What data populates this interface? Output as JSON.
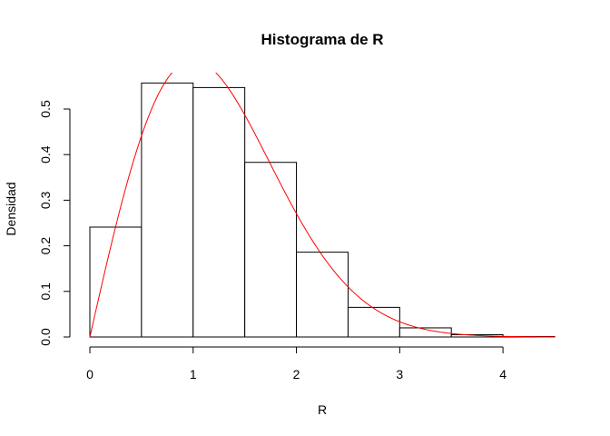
{
  "chart_data": {
    "type": "histogram",
    "title": "Histograma de R",
    "xlabel": "R",
    "ylabel": "Densidad",
    "xlim": [
      0,
      4.5
    ],
    "ylim": [
      0,
      0.58
    ],
    "xticks": [
      0,
      1,
      2,
      3,
      4
    ],
    "yticks": [
      0.0,
      0.1,
      0.2,
      0.3,
      0.4,
      0.5
    ],
    "ytick_labels": [
      "0.0",
      "0.1",
      "0.2",
      "0.3",
      "0.4",
      "0.5"
    ],
    "bins": [
      {
        "from": 0.0,
        "to": 0.5,
        "density": 0.241
      },
      {
        "from": 0.5,
        "to": 1.0,
        "density": 0.557
      },
      {
        "from": 1.0,
        "to": 1.5,
        "density": 0.547
      },
      {
        "from": 1.5,
        "to": 2.0,
        "density": 0.383
      },
      {
        "from": 2.0,
        "to": 2.5,
        "density": 0.186
      },
      {
        "from": 2.5,
        "to": 3.0,
        "density": 0.065
      },
      {
        "from": 3.0,
        "to": 3.5,
        "density": 0.02
      },
      {
        "from": 3.5,
        "to": 4.0,
        "density": 0.005
      },
      {
        "from": 4.0,
        "to": 4.5,
        "density": 0.001
      }
    ],
    "curve": {
      "type": "rayleigh_density",
      "sigma": 1.0,
      "color": "#ff0000",
      "clipped_at_plot_top": true
    },
    "bar_fill": "#ffffff",
    "bar_stroke": "#000000",
    "grid": false
  }
}
